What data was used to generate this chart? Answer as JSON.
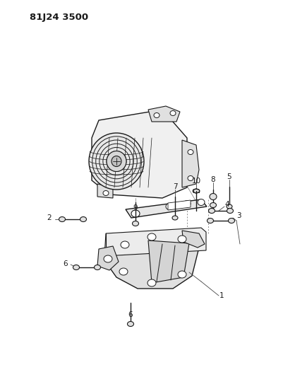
{
  "title_text": "81J24 3500",
  "bg_color": "#ffffff",
  "fig_width": 4.02,
  "fig_height": 5.33,
  "dpi": 100,
  "line_color": "#1a1a1a",
  "label_fontsize": 7.0,
  "title_fontsize": 9.5
}
